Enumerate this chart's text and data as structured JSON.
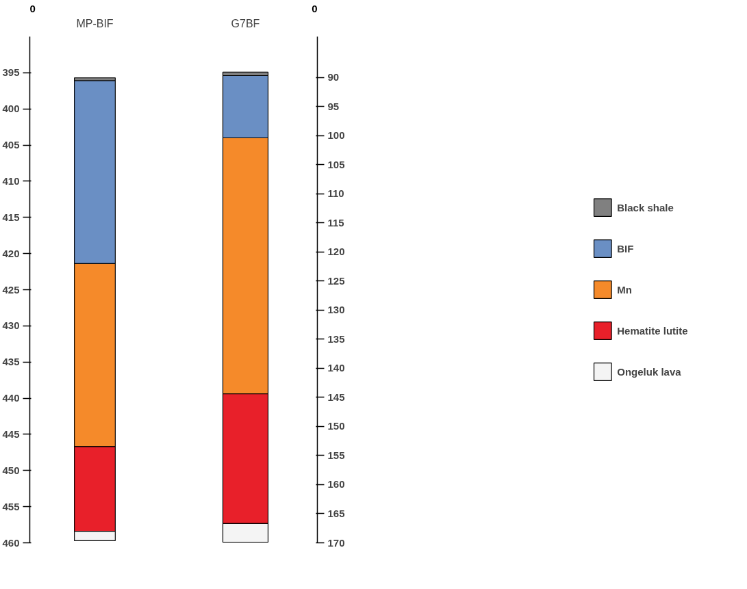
{
  "chart_data": [
    {
      "type": "bar",
      "categories": [
        "MP-BIF"
      ],
      "ylim": [
        460,
        390
      ],
      "annotations": [
        "0"
      ],
      "yticks": [
        395,
        400,
        405,
        410,
        415,
        420,
        425,
        430,
        435,
        440,
        445,
        450,
        455,
        460
      ],
      "series": [
        {
          "color": "#808080",
          "base": [
            395.7
          ],
          "values": [
            0.4
          ]
        },
        {
          "color": "#6a8fc4",
          "base": [
            396.1
          ],
          "values": [
            25.3
          ]
        },
        {
          "color": "#f58a2a",
          "base": [
            421.4
          ],
          "values": [
            25.3
          ]
        },
        {
          "color": "#e8202a",
          "base": [
            446.7
          ],
          "values": [
            11.7
          ]
        },
        {
          "color": "#f4f4f4",
          "base": [
            458.4
          ],
          "values": [
            1.3
          ]
        }
      ]
    },
    {
      "type": "bar",
      "categories": [
        "G7BF"
      ],
      "ylim": [
        170,
        83
      ],
      "annotations": [
        "0"
      ],
      "yticks": [
        90,
        95,
        100,
        105,
        110,
        115,
        120,
        125,
        130,
        135,
        140,
        145,
        150,
        155,
        160,
        165,
        170
      ],
      "legend": "right",
      "series": [
        {
          "name": "Black shale",
          "color": "#808080",
          "base": [
            89.1
          ],
          "values": [
            0.6
          ]
        },
        {
          "name": "BIF",
          "color": "#6a8fc4",
          "base": [
            89.7
          ],
          "values": [
            10.7
          ]
        },
        {
          "name": "Mn",
          "color": "#f58a2a",
          "base": [
            100.4
          ],
          "values": [
            44.0
          ]
        },
        {
          "name": "Hematite lutite",
          "color": "#e8202a",
          "base": [
            144.4
          ],
          "values": [
            22.3
          ]
        },
        {
          "name": "Ongeluk lava",
          "color": "#f4f4f4",
          "base": [
            166.7
          ],
          "values": [
            3.2
          ]
        }
      ]
    }
  ]
}
